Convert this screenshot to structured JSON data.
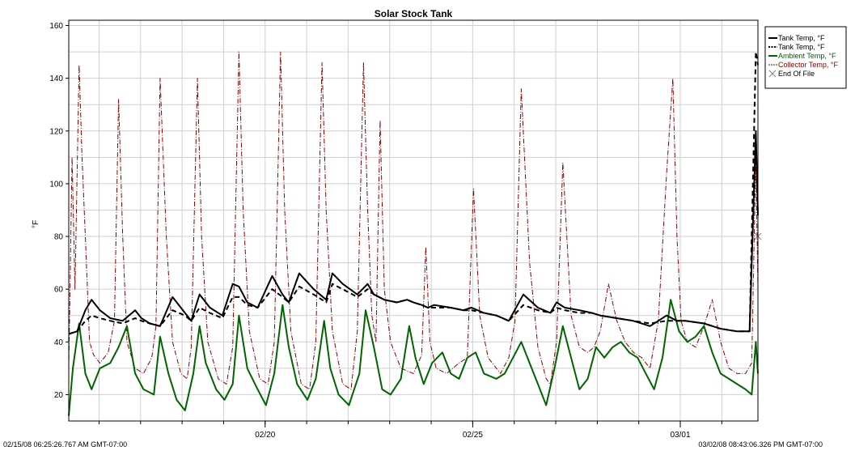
{
  "chart_data": {
    "type": "line",
    "title": "Solar Stock Tank",
    "ylabel": "°F",
    "xlabel": "",
    "ylim": [
      10,
      162
    ],
    "xlim": [
      0,
      16.6
    ],
    "yticks": [
      20,
      40,
      60,
      80,
      100,
      120,
      140,
      160
    ],
    "xticks": [
      {
        "value": 4.73,
        "label": "02/20"
      },
      {
        "value": 9.73,
        "label": "02/25"
      },
      {
        "value": 14.73,
        "label": "03/01"
      }
    ],
    "start_label": "02/15/08 06:25:26.767 AM GMT-07:00",
    "end_label": "03/02/08 08:43:06.326 PM GMT-07:00",
    "grid": true,
    "legend_position": "top-right",
    "colors": {
      "tank1": "#000000",
      "tank2": "#000000",
      "ambient": "#006400",
      "collector": "#8b0000",
      "end_marker": "#808080"
    },
    "series": [
      {
        "name": "Tank Temp, °F",
        "key": "tank1",
        "style": "solid",
        "x": [
          0,
          0.2,
          0.4,
          0.55,
          0.75,
          1.0,
          1.3,
          1.6,
          1.75,
          1.95,
          2.2,
          2.5,
          2.8,
          2.95,
          3.15,
          3.4,
          3.7,
          3.95,
          4.1,
          4.3,
          4.55,
          4.9,
          5.15,
          5.3,
          5.55,
          5.9,
          6.2,
          6.35,
          6.6,
          6.95,
          7.2,
          7.35,
          7.6,
          7.9,
          8.15,
          8.3,
          8.5,
          8.65,
          8.8,
          9.2,
          9.5,
          9.7,
          10.0,
          10.3,
          10.6,
          10.95,
          11.3,
          11.6,
          11.75,
          11.95,
          12.3,
          12.6,
          12.8,
          13.2,
          13.6,
          14.0,
          14.4,
          14.65,
          14.85,
          15.3,
          15.7,
          16.1,
          16.4,
          16.55,
          16.6
        ],
        "y": [
          43,
          44,
          52,
          56,
          52,
          49,
          48,
          52,
          49,
          47,
          46,
          57,
          51,
          48,
          58,
          53,
          50,
          62,
          61,
          55,
          53,
          65,
          58,
          55,
          66,
          60,
          56,
          66,
          62,
          58,
          62,
          58,
          56,
          55,
          56,
          55,
          54,
          53,
          54,
          53,
          52,
          53,
          51,
          50,
          48,
          58,
          53,
          51,
          55,
          53,
          52,
          51,
          50,
          49,
          48,
          46,
          50,
          48,
          48,
          47,
          45,
          44,
          44,
          120,
          88
        ]
      },
      {
        "name": "Tank Temp, °F",
        "key": "tank2",
        "style": "dashed",
        "x": [
          0,
          0.2,
          0.4,
          0.55,
          0.75,
          1.0,
          1.3,
          1.6,
          1.75,
          1.95,
          2.2,
          2.5,
          2.8,
          2.95,
          3.15,
          3.4,
          3.7,
          3.95,
          4.1,
          4.3,
          4.55,
          4.9,
          5.15,
          5.3,
          5.55,
          5.9,
          6.2,
          6.35,
          6.6,
          6.95,
          7.2,
          7.35,
          7.6,
          7.9,
          8.15,
          8.3,
          8.5,
          8.65,
          8.8,
          9.2,
          9.5,
          9.7,
          10.0,
          10.3,
          10.6,
          10.95,
          11.3,
          11.6,
          11.75,
          11.95,
          12.3,
          12.6,
          12.8,
          13.2,
          13.6,
          14.0,
          14.4,
          14.65,
          14.85,
          15.3,
          15.7,
          16.1,
          16.4,
          16.55,
          16.6
        ],
        "y": [
          43,
          44,
          48,
          50,
          49,
          48,
          47,
          49,
          48,
          47,
          46,
          52,
          50,
          48,
          53,
          51,
          49,
          57,
          57,
          54,
          53,
          60,
          57,
          55,
          61,
          58,
          55,
          62,
          60,
          57,
          60,
          58,
          56,
          55,
          56,
          55,
          54,
          53,
          53,
          53,
          52,
          52,
          51,
          50,
          48,
          54,
          52,
          51,
          53,
          52,
          51,
          51,
          50,
          49,
          48,
          47,
          48,
          48,
          48,
          47,
          45,
          44,
          44,
          150,
          145
        ]
      },
      {
        "name": "Ambient Temp, °F",
        "key": "ambient",
        "style": "solid",
        "x": [
          0,
          0.1,
          0.25,
          0.4,
          0.55,
          0.75,
          1.0,
          1.2,
          1.4,
          1.6,
          1.8,
          2.05,
          2.2,
          2.4,
          2.6,
          2.8,
          3.0,
          3.15,
          3.3,
          3.55,
          3.75,
          3.95,
          4.1,
          4.3,
          4.55,
          4.75,
          4.95,
          5.15,
          5.3,
          5.5,
          5.75,
          5.95,
          6.15,
          6.3,
          6.5,
          6.75,
          7.0,
          7.15,
          7.35,
          7.55,
          7.75,
          8.0,
          8.2,
          8.35,
          8.55,
          8.75,
          9.0,
          9.2,
          9.4,
          9.6,
          9.8,
          10.0,
          10.3,
          10.5,
          10.7,
          10.9,
          11.1,
          11.3,
          11.5,
          11.7,
          11.9,
          12.1,
          12.3,
          12.5,
          12.7,
          12.9,
          13.1,
          13.3,
          13.5,
          13.7,
          13.9,
          14.1,
          14.3,
          14.5,
          14.7,
          14.9,
          15.1,
          15.3,
          15.5,
          15.7,
          15.9,
          16.1,
          16.3,
          16.45,
          16.55,
          16.6
        ],
        "y": [
          12,
          30,
          47,
          28,
          22,
          30,
          32,
          38,
          46,
          28,
          22,
          20,
          42,
          28,
          18,
          14,
          28,
          46,
          32,
          22,
          18,
          24,
          50,
          30,
          22,
          16,
          28,
          54,
          38,
          24,
          18,
          26,
          48,
          30,
          20,
          16,
          28,
          52,
          38,
          22,
          20,
          26,
          46,
          34,
          24,
          32,
          36,
          28,
          26,
          34,
          36,
          28,
          26,
          28,
          34,
          40,
          32,
          24,
          16,
          30,
          46,
          34,
          22,
          26,
          38,
          34,
          38,
          40,
          36,
          34,
          28,
          22,
          34,
          56,
          44,
          40,
          42,
          46,
          36,
          28,
          26,
          24,
          22,
          20,
          40,
          28
        ]
      },
      {
        "name": "Collector Temp, °F",
        "key": "collector",
        "style": "dashdot",
        "x": [
          0,
          0.08,
          0.15,
          0.25,
          0.32,
          0.4,
          0.5,
          0.6,
          0.75,
          0.95,
          1.1,
          1.2,
          1.3,
          1.4,
          1.6,
          1.8,
          2.0,
          2.1,
          2.2,
          2.35,
          2.5,
          2.7,
          2.85,
          2.95,
          3.1,
          3.2,
          3.35,
          3.6,
          3.8,
          3.95,
          4.1,
          4.2,
          4.35,
          4.6,
          4.8,
          4.95,
          5.1,
          5.2,
          5.35,
          5.6,
          5.8,
          5.95,
          6.1,
          6.2,
          6.35,
          6.6,
          6.8,
          6.95,
          7.1,
          7.2,
          7.3,
          7.4,
          7.5,
          7.6,
          7.75,
          8.0,
          8.3,
          8.5,
          8.6,
          8.7,
          8.85,
          9.1,
          9.4,
          9.6,
          9.75,
          9.9,
          10.1,
          10.4,
          10.6,
          10.75,
          10.9,
          11.1,
          11.3,
          11.5,
          11.6,
          11.75,
          11.9,
          12.1,
          12.3,
          12.5,
          12.65,
          12.8,
          13.0,
          13.2,
          13.4,
          13.6,
          13.8,
          14.0,
          14.2,
          14.4,
          14.55,
          14.65,
          14.75,
          14.9,
          15.1,
          15.3,
          15.5,
          15.7,
          15.9,
          16.1,
          16.3,
          16.45,
          16.55,
          16.6
        ],
        "y": [
          30,
          110,
          60,
          145,
          110,
          80,
          40,
          35,
          32,
          36,
          48,
          132,
          80,
          40,
          30,
          28,
          34,
          46,
          140,
          80,
          40,
          28,
          26,
          38,
          140,
          80,
          40,
          26,
          24,
          38,
          150,
          90,
          44,
          26,
          24,
          40,
          150,
          90,
          44,
          24,
          22,
          40,
          146,
          90,
          44,
          24,
          22,
          44,
          146,
          90,
          50,
          40,
          124,
          60,
          40,
          30,
          28,
          35,
          76,
          40,
          30,
          28,
          32,
          34,
          98,
          50,
          34,
          28,
          34,
          48,
          136,
          70,
          38,
          26,
          24,
          40,
          108,
          50,
          38,
          36,
          38,
          44,
          62,
          48,
          40,
          36,
          34,
          30,
          48,
          104,
          140,
          80,
          48,
          40,
          38,
          46,
          56,
          40,
          30,
          28,
          28,
          32,
          110,
          60
        ]
      }
    ],
    "annotations": [
      {
        "type": "end_of_file",
        "x": 16.6,
        "y": 80,
        "label": "End Of File"
      }
    ]
  }
}
